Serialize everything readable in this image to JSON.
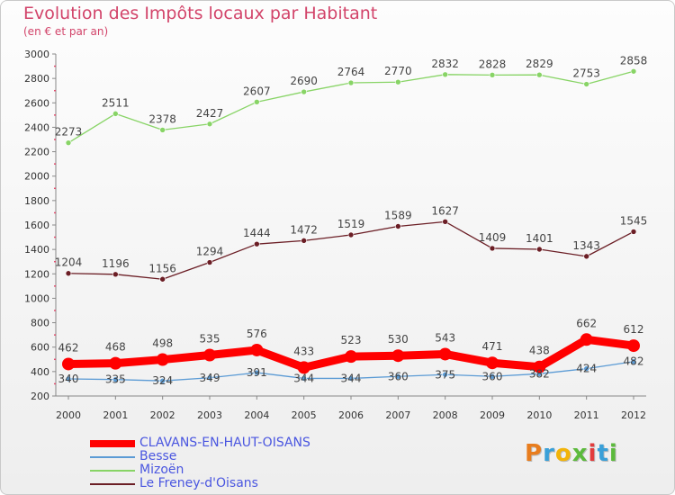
{
  "chart_data": {
    "type": "line",
    "title": "Evolution des Impôts locaux par Habitant",
    "subtitle": "(en € et par an)",
    "categories": [
      "2000",
      "2001",
      "2002",
      "2003",
      "2004",
      "2005",
      "2006",
      "2007",
      "2008",
      "2009",
      "2010",
      "2011",
      "2012"
    ],
    "ylim": [
      200,
      3000
    ],
    "yticks": [
      200,
      400,
      600,
      800,
      1000,
      1200,
      1400,
      1600,
      1800,
      2000,
      2200,
      2400,
      2600,
      2800,
      3000
    ],
    "grid": false,
    "legend_position": "bottom-left",
    "series": [
      {
        "name": "CLAVANS-EN-HAUT-OISANS",
        "color": "#ff0000",
        "values": [
          462,
          468,
          498,
          535,
          576,
          433,
          523,
          530,
          543,
          471,
          438,
          662,
          612
        ]
      },
      {
        "name": "Besse",
        "color": "#5b9bd5",
        "values": [
          340,
          335,
          324,
          349,
          391,
          344,
          344,
          360,
          375,
          360,
          382,
          424,
          482
        ],
        "labels": [
          "340",
          "335",
          "324",
          "349",
          "391",
          "344",
          "344",
          "360",
          "375",
          "360",
          "382",
          "424",
          "482"
        ]
      },
      {
        "name": "Mizoën",
        "color": "#88d466",
        "values": [
          2273,
          2511,
          2378,
          2427,
          2607,
          2690,
          2764,
          2770,
          2832,
          2828,
          2829,
          2753,
          2858
        ]
      },
      {
        "name": "Le Freney-d'Oisans",
        "color": "#6b1e25",
        "values": [
          1204,
          1196,
          1156,
          1294,
          1444,
          1472,
          1519,
          1589,
          1627,
          1409,
          1401,
          1343,
          1545
        ]
      }
    ]
  },
  "legend": {
    "items": [
      {
        "label": "CLAVANS-EN-HAUT-OISANS",
        "color": "#ff0000",
        "text_color": "#4a56e0"
      },
      {
        "label": "Besse",
        "color": "#5b9bd5",
        "text_color": "#4a56e0"
      },
      {
        "label": "Mizoën",
        "color": "#88d466",
        "text_color": "#4a56e0"
      },
      {
        "label": "Le Freney-d'Oisans",
        "color": "#6b1e25",
        "text_color": "#4a56e0"
      }
    ]
  },
  "logo": {
    "letters": [
      "P",
      "r",
      "o",
      "x",
      "i",
      "t",
      "i"
    ],
    "colors": [
      "#e87d1e",
      "#3aa0d8",
      "#f2b40a",
      "#5cba3c",
      "#e23c3c",
      "#3aa0d8",
      "#5cba3c"
    ]
  }
}
